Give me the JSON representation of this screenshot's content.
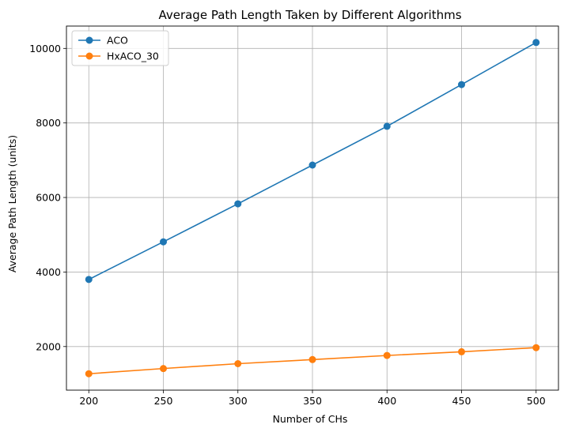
{
  "chart_data": {
    "type": "line",
    "title": "Average Path Length Taken by Different Algorithms",
    "xlabel": "Number of CHs",
    "ylabel": "Average Path Length (units)",
    "x": [
      200,
      250,
      300,
      350,
      400,
      450,
      500
    ],
    "xticks": [
      200,
      250,
      300,
      350,
      400,
      450,
      500
    ],
    "yticks": [
      2000,
      4000,
      6000,
      8000,
      10000
    ],
    "xlim": [
      185,
      515
    ],
    "ylim": [
      830,
      10600
    ],
    "grid": true,
    "legend_position": "top-left",
    "series": [
      {
        "name": "ACO",
        "color": "#1f77b4",
        "values": [
          3800,
          4810,
          5830,
          6870,
          7910,
          9030,
          10160
        ]
      },
      {
        "name": "HxACO_30",
        "color": "#ff7f0e",
        "values": [
          1270,
          1410,
          1540,
          1650,
          1760,
          1860,
          1970
        ]
      }
    ]
  }
}
